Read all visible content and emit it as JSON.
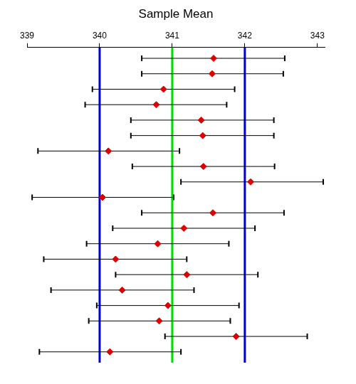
{
  "chart_data": {
    "type": "interval",
    "title": "Sample Mean",
    "xlim": [
      339,
      343.1
    ],
    "xticks": [
      339,
      340,
      341,
      342,
      343
    ],
    "tick_labels": "x",
    "grid": false,
    "marker": "diamond",
    "color": "#dd0000",
    "values": [
      341.57,
      341.55,
      340.88,
      340.78,
      341.4,
      341.42,
      340.12,
      341.43,
      342.08,
      340.04,
      341.56,
      341.16,
      340.8,
      340.22,
      341.2,
      340.31,
      340.94,
      340.82,
      341.88,
      340.14
    ],
    "lower": [
      340.58,
      340.58,
      339.9,
      339.8,
      340.43,
      340.43,
      339.15,
      340.45,
      341.12,
      339.07,
      340.58,
      340.18,
      339.82,
      339.23,
      340.22,
      339.33,
      339.96,
      339.85,
      340.9,
      339.17
    ],
    "upper": [
      342.55,
      342.53,
      341.86,
      341.75,
      342.4,
      342.4,
      341.1,
      342.41,
      343.08,
      341.02,
      342.54,
      342.14,
      341.78,
      341.2,
      342.18,
      341.3,
      341.92,
      341.8,
      342.86,
      341.12
    ],
    "lines": [
      {
        "value": 340,
        "color": "#0000cc"
      },
      {
        "value": 341,
        "color": "#00dd00"
      },
      {
        "value": 342,
        "color": "#0000cc"
      }
    ]
  }
}
